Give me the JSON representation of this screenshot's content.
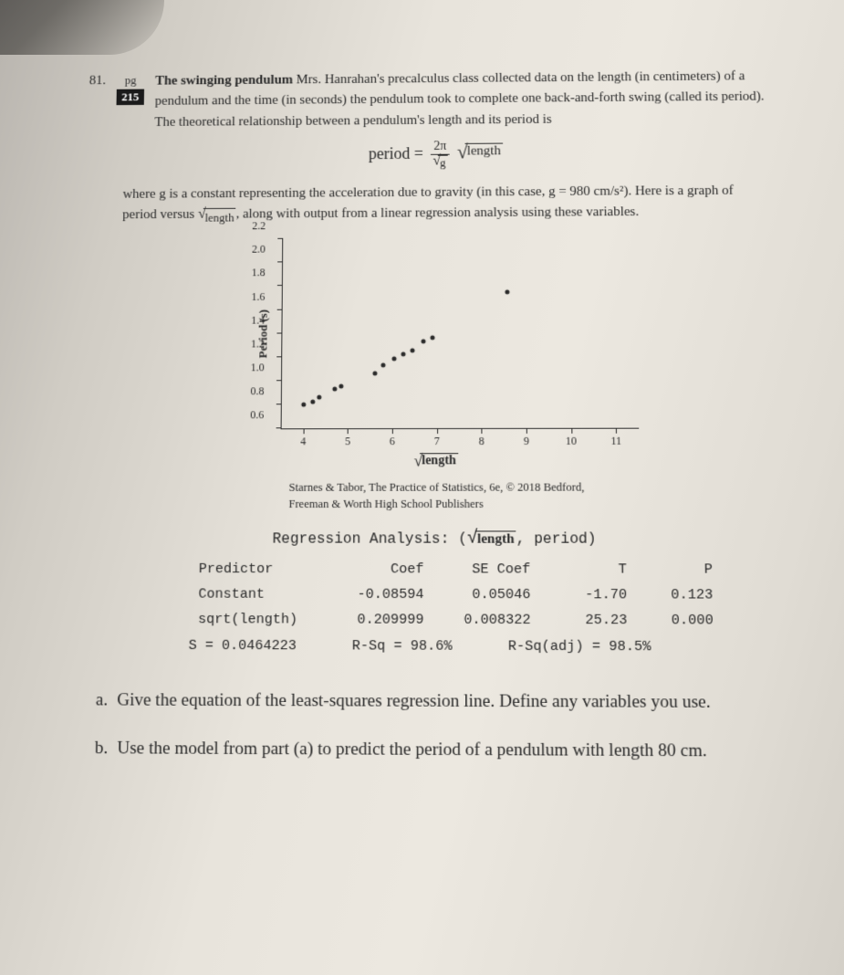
{
  "problem": {
    "number": "81.",
    "pg_label": "pg",
    "pg_number": "215",
    "title": "The swinging pendulum",
    "body": "Mrs. Hanrahan's precalculus class collected data on the length (in centimeters) of a pendulum and the time (in seconds) the pendulum took to complete one back-and-forth swing (called its period). The theoretical relationship between a pendulum's length and its period is"
  },
  "equation": {
    "lhs": "period",
    "eq": "=",
    "num": "2π",
    "den_sqrt": "g",
    "rhs_sqrt": "length"
  },
  "desc2": {
    "pre": "where g is a constant representing the acceleration due to gravity (in this case, g = 980 cm/s²). Here is a graph of period versus ",
    "sqrt_arg": "length",
    "post": ", along with output from a linear regression analysis using these variables."
  },
  "chart": {
    "ylabel": "Period (s)",
    "xlabel_sqrt": "length",
    "ylim": [
      0.6,
      2.2
    ],
    "yticks": [
      0.6,
      0.8,
      1.0,
      1.2,
      1.4,
      1.6,
      1.8,
      2.0,
      2.2
    ],
    "xlim": [
      3.5,
      11.5
    ],
    "xticks": [
      4,
      5,
      6,
      7,
      8,
      9,
      10,
      11
    ],
    "points": [
      [
        4.0,
        0.8
      ],
      [
        4.2,
        0.82
      ],
      [
        4.35,
        0.86
      ],
      [
        4.7,
        0.93
      ],
      [
        4.85,
        0.95
      ],
      [
        5.6,
        1.06
      ],
      [
        5.8,
        1.13
      ],
      [
        6.05,
        1.18
      ],
      [
        6.25,
        1.22
      ],
      [
        6.45,
        1.25
      ],
      [
        6.7,
        1.33
      ],
      [
        6.9,
        1.36
      ],
      [
        8.6,
        1.74
      ]
    ]
  },
  "credit": {
    "line1": "Starnes & Tabor, The Practice of Statistics, 6e, © 2018 Bedford,",
    "line2": "Freeman & Worth High School Publishers"
  },
  "regression": {
    "title_prefix": "Regression Analysis: (",
    "title_sqrt": "length",
    "title_suffix": ", period)",
    "headers": [
      "Predictor",
      "Coef",
      "SE Coef",
      "T",
      "P"
    ],
    "rows": [
      [
        "Constant",
        "-0.08594",
        "0.05046",
        "-1.70",
        "0.123"
      ],
      [
        "sqrt(length)",
        "0.209999",
        "0.008322",
        "25.23",
        "0.000"
      ]
    ],
    "summary": [
      "S = 0.0464223",
      "R-Sq = 98.6%",
      "R-Sq(adj) = 98.5%"
    ]
  },
  "questions": {
    "a": {
      "label": "a.",
      "text": "Give the equation of the least-squares regression line. Define any variables you use."
    },
    "b": {
      "label": "b.",
      "text": "Use the model from part (a) to predict the period of a pendulum with length 80 cm."
    }
  }
}
